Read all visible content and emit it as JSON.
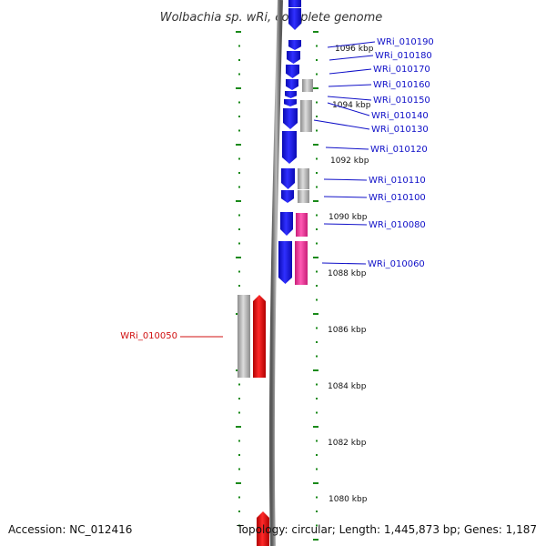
{
  "title": "Wolbachia sp. wRi, complete genome",
  "accession": "Accession: NC_012416",
  "summary": "Topology: circular; Length: 1,445,873 bp; Genes: 1,187",
  "colors": {
    "forward_gene": "#1414e6",
    "forward_gene_alt": "#e6141e",
    "cds_gray": "#b4b4b4",
    "rna_pink": "#ee3c9a",
    "label_blue": "#1010c8",
    "label_red": "#d01010",
    "scale_green": "#1a8a1a",
    "backbone": "#7a7a7a"
  },
  "scale_labels": [
    {
      "text": "1096 kbp"
    },
    {
      "text": "1094 kbp"
    },
    {
      "text": "1092 kbp"
    },
    {
      "text": "1090 kbp"
    },
    {
      "text": "1088 kbp"
    },
    {
      "text": "1086 kbp"
    },
    {
      "text": "1084 kbp"
    },
    {
      "text": "1082 kbp"
    },
    {
      "text": "1080 kbp"
    }
  ],
  "gene_labels": [
    {
      "text": "WRi_010190",
      "color": "label_blue"
    },
    {
      "text": "WRi_010180",
      "color": "label_blue"
    },
    {
      "text": "WRi_010170",
      "color": "label_blue"
    },
    {
      "text": "WRi_010160",
      "color": "label_blue"
    },
    {
      "text": "WRi_010150",
      "color": "label_blue"
    },
    {
      "text": "WRi_010140",
      "color": "label_blue"
    },
    {
      "text": "WRi_010130",
      "color": "label_blue"
    },
    {
      "text": "WRi_010120",
      "color": "label_blue"
    },
    {
      "text": "WRi_010110",
      "color": "label_blue"
    },
    {
      "text": "WRi_010100",
      "color": "label_blue"
    },
    {
      "text": "WRi_010080",
      "color": "label_blue"
    },
    {
      "text": "WRi_010060",
      "color": "label_blue"
    },
    {
      "text": "WRi_010050",
      "color": "label_red"
    }
  ]
}
